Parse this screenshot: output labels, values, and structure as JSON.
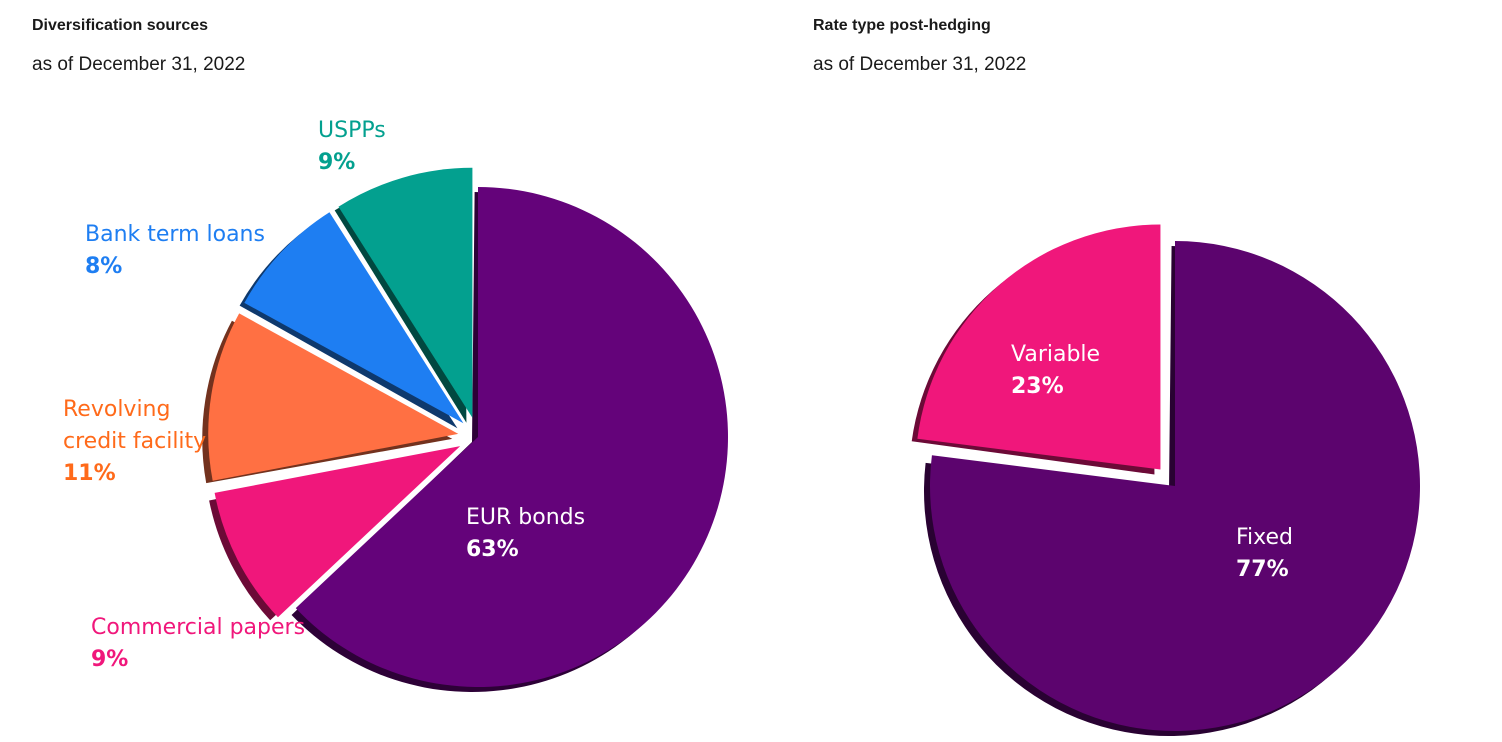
{
  "charts": [
    {
      "title": "Diversification sources",
      "subtitle": "as of December 31, 2022"
    },
    {
      "title": "Rate type post-hedging",
      "subtitle": "as of December 31, 2022"
    }
  ],
  "chart_data": [
    {
      "type": "pie",
      "title": "Diversification sources",
      "subtitle": "as of December 31, 2022",
      "slices": [
        {
          "name": "EUR bonds",
          "value": 63,
          "label": "63%",
          "color": "#64037a",
          "exploded": false
        },
        {
          "name": "Commercial papers",
          "value": 9,
          "label": "9%",
          "color": "#f0177b",
          "exploded": true
        },
        {
          "name": "Revolving credit facility",
          "value": 11,
          "label": "11%",
          "color": "#ff7043",
          "exploded": true
        },
        {
          "name": "Bank term loans",
          "value": 8,
          "label": "8%",
          "color": "#1e7ef2",
          "exploded": true
        },
        {
          "name": "USPPs",
          "value": 9,
          "label": "9%",
          "color": "#03a08f",
          "exploded": true
        }
      ],
      "label_colors": {
        "EUR bonds": "#ffffff",
        "Commercial papers": "#f0177b",
        "Revolving credit facility": "#ff6a1a",
        "Bank term loans": "#1e7ef2",
        "USPPs": "#03a08f"
      }
    },
    {
      "type": "pie",
      "title": "Rate type post-hedging",
      "subtitle": "as of December 31, 2022",
      "slices": [
        {
          "name": "Fixed",
          "value": 77,
          "label": "77%",
          "color": "#5c046e",
          "exploded": false
        },
        {
          "name": "Variable",
          "value": 23,
          "label": "23%",
          "color": "#f0177b",
          "exploded": true
        }
      ],
      "label_colors": {
        "Fixed": "#ffffff",
        "Variable": "#ffffff"
      }
    }
  ]
}
